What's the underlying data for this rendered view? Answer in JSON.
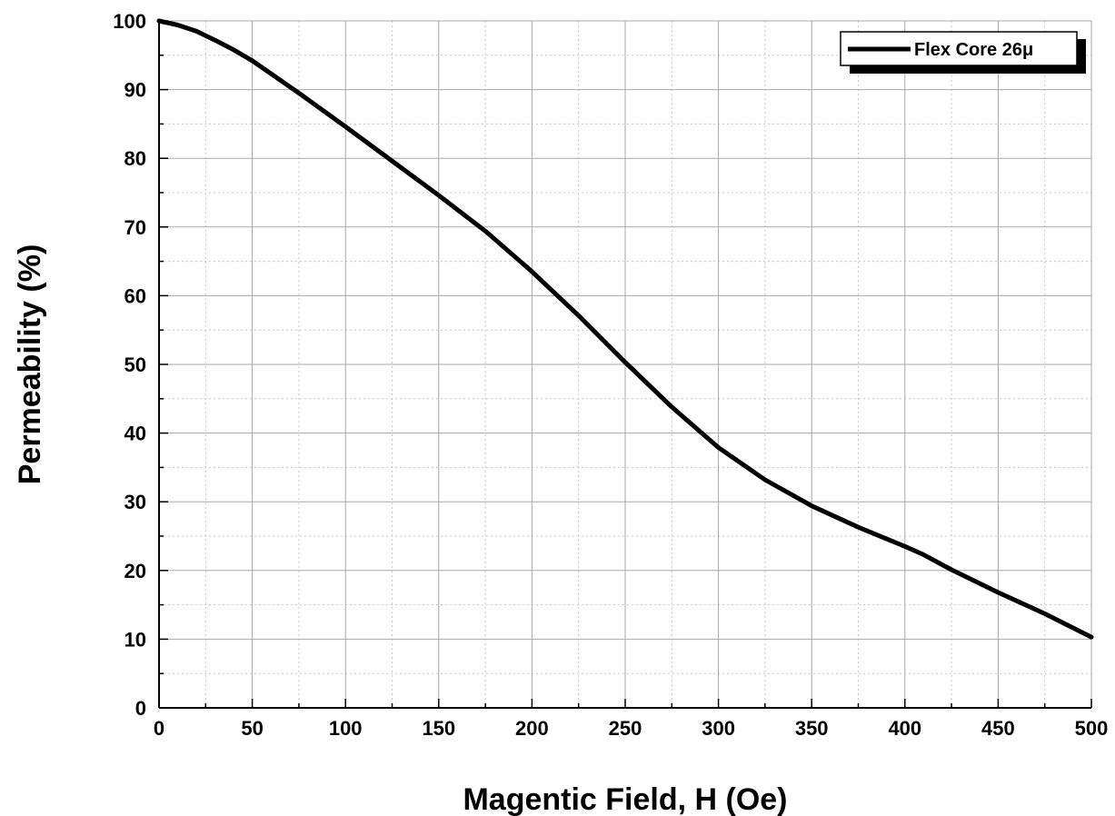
{
  "chart_data": {
    "type": "line",
    "xlabel": "Magentic Field, H (Oe)",
    "ylabel": "Permeability (%)",
    "xlim": [
      0,
      500
    ],
    "ylim": [
      0,
      100
    ],
    "xticks": [
      0,
      50,
      100,
      150,
      200,
      250,
      300,
      350,
      400,
      450,
      500
    ],
    "yticks": [
      0,
      10,
      20,
      30,
      40,
      50,
      60,
      70,
      80,
      90,
      100
    ],
    "grid": true,
    "legend_position": "top-right",
    "series": [
      {
        "name": "Flex Core 26μ",
        "color": "#000000",
        "x": [
          0,
          10,
          20,
          30,
          40,
          50,
          75,
          100,
          125,
          150,
          175,
          200,
          225,
          250,
          275,
          300,
          325,
          350,
          375,
          400,
          410,
          425,
          450,
          475,
          500
        ],
        "y": [
          100,
          99.4,
          98.5,
          97.2,
          95.8,
          94.2,
          89.5,
          84.6,
          79.6,
          74.6,
          69.4,
          63.5,
          57.1,
          50.3,
          43.8,
          37.9,
          33.2,
          29.4,
          26.3,
          23.5,
          22.3,
          20.1,
          16.8,
          13.7,
          10.3
        ]
      }
    ]
  }
}
